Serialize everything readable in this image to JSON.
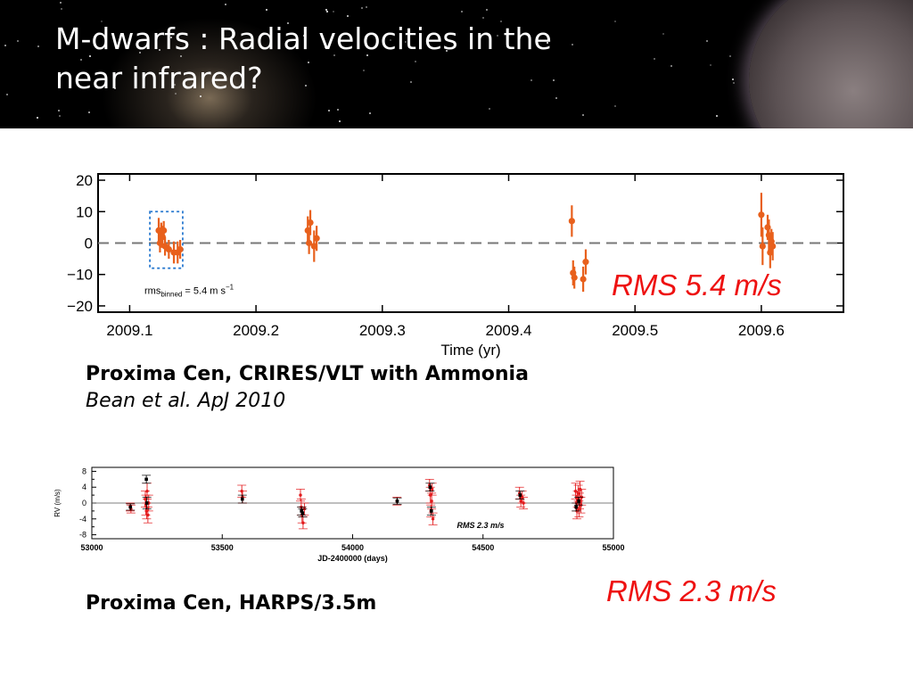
{
  "slide": {
    "title_line1": "M-dwarfs : Radial velocities in the",
    "title_line2": "near infrared?",
    "caption1_main": "Proxima Cen, CRIRES/VLT with Ammonia",
    "caption1_ref": "Bean et al. ApJ 2010",
    "caption2_main": "Proxima Cen, HARPS/3.5m",
    "rms1_label": "RMS 5.4 m/s",
    "rms2_label": "RMS 2.3 m/s"
  },
  "colors": {
    "title": "#ffffff",
    "rms": "#ee1111",
    "crires_points": "#e8601c",
    "harps_red": "#e31a1c",
    "harps_black": "#000000"
  },
  "chart_data": [
    {
      "type": "scatter",
      "xlabel": "Time (yr)",
      "ylabel": "",
      "xlim": [
        2009.075,
        2009.665
      ],
      "ylim": [
        -22,
        22
      ],
      "xticks": [
        2009.1,
        2009.2,
        2009.3,
        2009.4,
        2009.5,
        2009.6
      ],
      "xtick_labels": [
        "2009.1",
        "2009.2",
        "2009.3",
        "2009.4",
        "2009.5",
        "2009.6"
      ],
      "yticks": [
        -20,
        -10,
        0,
        10,
        20
      ],
      "ytick_labels": [
        "−20",
        "−10",
        "0",
        "10",
        "20"
      ],
      "zero_line": true,
      "annotation": "rms",
      "annotation_sub": "binned",
      "annotation_rest": " = 5.4 m s",
      "annotation_sup": "−1",
      "highlight_box": {
        "x": [
          2009.116,
          2009.142
        ],
        "y": [
          -8,
          10
        ]
      },
      "series": [
        {
          "points": [
            {
              "x": 2009.123,
              "y": 4,
              "err": 4
            },
            {
              "x": 2009.124,
              "y": 0,
              "err": 3
            },
            {
              "x": 2009.125,
              "y": 2.5,
              "err": 4
            },
            {
              "x": 2009.126,
              "y": 2,
              "err": 3.5
            },
            {
              "x": 2009.127,
              "y": 4,
              "err": 3
            },
            {
              "x": 2009.128,
              "y": -1,
              "err": 3
            },
            {
              "x": 2009.131,
              "y": -2,
              "err": 3
            },
            {
              "x": 2009.135,
              "y": -3,
              "err": 3.5
            },
            {
              "x": 2009.138,
              "y": -3,
              "err": 3.5
            },
            {
              "x": 2009.14,
              "y": -2,
              "err": 3
            },
            {
              "x": 2009.241,
              "y": 4,
              "err": 4.5
            },
            {
              "x": 2009.242,
              "y": 0,
              "err": 3.5
            },
            {
              "x": 2009.243,
              "y": 6.5,
              "err": 4
            },
            {
              "x": 2009.246,
              "y": -1,
              "err": 5
            },
            {
              "x": 2009.248,
              "y": 1.5,
              "err": 4
            },
            {
              "x": 2009.45,
              "y": 7,
              "err": 5
            },
            {
              "x": 2009.451,
              "y": -9.5,
              "err": 4
            },
            {
              "x": 2009.452,
              "y": -11,
              "err": 3.5
            },
            {
              "x": 2009.459,
              "y": -11.5,
              "err": 4
            },
            {
              "x": 2009.461,
              "y": -6,
              "err": 4
            },
            {
              "x": 2009.6,
              "y": 9,
              "err": 7
            },
            {
              "x": 2009.601,
              "y": -1,
              "err": 6
            },
            {
              "x": 2009.605,
              "y": 5,
              "err": 4
            },
            {
              "x": 2009.606,
              "y": 2.5,
              "err": 5
            },
            {
              "x": 2009.607,
              "y": -3,
              "err": 5
            },
            {
              "x": 2009.608,
              "y": 0.5,
              "err": 4
            },
            {
              "x": 2009.609,
              "y": -1,
              "err": 4.5
            }
          ]
        }
      ]
    },
    {
      "type": "scatter",
      "xlabel": "JD-2400000 (days)",
      "ylabel": "RV (m/s)",
      "xlim": [
        53000,
        55000
      ],
      "ylim": [
        -9,
        9
      ],
      "xticks": [
        53000,
        53500,
        54000,
        54500,
        55000
      ],
      "xtick_labels": [
        "53000",
        "53500",
        "54000",
        "54500",
        "55000"
      ],
      "yticks": [
        -8,
        -4,
        0,
        4,
        8
      ],
      "ytick_labels": [
        "-8",
        "-4",
        "0",
        "4",
        "8"
      ],
      "yminor_ticks": [
        -6,
        -2,
        2,
        6
      ],
      "zero_line": true,
      "annotation": "RMS 2.3 m/s",
      "series": [
        {
          "points": [
            {
              "x": 53147,
              "y": -1,
              "err": 1
            },
            {
              "x": 53150,
              "y": -1.5,
              "err": 1
            },
            {
              "x": 53205,
              "y": 1,
              "err": 2
            },
            {
              "x": 53207,
              "y": -0.5,
              "err": 2.5
            },
            {
              "x": 53210,
              "y": -2,
              "err": 2
            },
            {
              "x": 53212,
              "y": 3,
              "err": 2
            },
            {
              "x": 53215,
              "y": -3,
              "err": 2
            },
            {
              "x": 53218,
              "y": 0,
              "err": 2
            },
            {
              "x": 53575,
              "y": 3,
              "err": 1.5
            },
            {
              "x": 53578,
              "y": 1.5,
              "err": 1.5
            },
            {
              "x": 53800,
              "y": 2,
              "err": 1.5
            },
            {
              "x": 53803,
              "y": -1,
              "err": 2
            },
            {
              "x": 53806,
              "y": -3,
              "err": 2
            },
            {
              "x": 53810,
              "y": -5,
              "err": 1.5
            },
            {
              "x": 53815,
              "y": -1.5,
              "err": 1.5
            },
            {
              "x": 54170,
              "y": 0.5,
              "err": 1
            },
            {
              "x": 54295,
              "y": 4.5,
              "err": 1.5
            },
            {
              "x": 54298,
              "y": 2,
              "err": 2
            },
            {
              "x": 54300,
              "y": -2,
              "err": 1.5
            },
            {
              "x": 54303,
              "y": 0.5,
              "err": 2
            },
            {
              "x": 54305,
              "y": 3.5,
              "err": 1.5
            },
            {
              "x": 54308,
              "y": -4,
              "err": 1.5
            },
            {
              "x": 54640,
              "y": 2.5,
              "err": 1.5
            },
            {
              "x": 54645,
              "y": 0.5,
              "err": 1.5
            },
            {
              "x": 54650,
              "y": 1.5,
              "err": 1.5
            },
            {
              "x": 54655,
              "y": 0,
              "err": 1.5
            },
            {
              "x": 54855,
              "y": 3,
              "err": 2
            },
            {
              "x": 54858,
              "y": 0,
              "err": 2
            },
            {
              "x": 54860,
              "y": -2,
              "err": 2
            },
            {
              "x": 54862,
              "y": 1,
              "err": 2
            },
            {
              "x": 54865,
              "y": 2.5,
              "err": 2
            },
            {
              "x": 54868,
              "y": -1.5,
              "err": 2
            },
            {
              "x": 54870,
              "y": 0.5,
              "err": 2
            },
            {
              "x": 54872,
              "y": 3.5,
              "err": 2
            },
            {
              "x": 54875,
              "y": -0.5,
              "err": 2
            },
            {
              "x": 54878,
              "y": 1.5,
              "err": 2
            }
          ]
        },
        {
          "points": [
            {
              "x": 53148,
              "y": -1,
              "err": 0.8
            },
            {
              "x": 53209,
              "y": 6,
              "err": 1
            },
            {
              "x": 53211,
              "y": 0,
              "err": 1.5
            },
            {
              "x": 53577,
              "y": 1,
              "err": 1
            },
            {
              "x": 53804,
              "y": -2,
              "err": 1
            },
            {
              "x": 53808,
              "y": -2.5,
              "err": 1
            },
            {
              "x": 54171,
              "y": 0.5,
              "err": 0.8
            },
            {
              "x": 54297,
              "y": 4,
              "err": 1
            },
            {
              "x": 54302,
              "y": -2,
              "err": 1
            },
            {
              "x": 54642,
              "y": 2,
              "err": 1
            },
            {
              "x": 54857,
              "y": -1,
              "err": 1
            },
            {
              "x": 54867,
              "y": 0.5,
              "err": 1
            }
          ]
        }
      ]
    }
  ]
}
